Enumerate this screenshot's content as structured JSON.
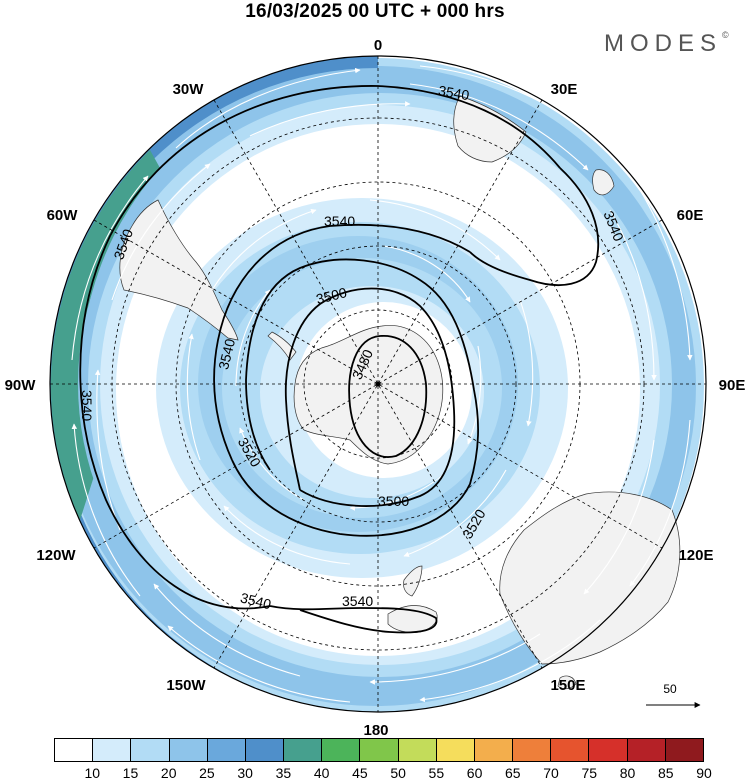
{
  "title": "16/03/2025  00 UTC  + 000 hrs",
  "brand": "MODES",
  "brand_mark": "©",
  "longitude_labels": {
    "lon_0": "0",
    "lon_30e": "30E",
    "lon_60e": "60E",
    "lon_90e": "90E",
    "lon_120e": "120E",
    "lon_150e": "150E",
    "lon_180": "180",
    "lon_150w": "150W",
    "lon_120w": "120W",
    "lon_90w": "90W",
    "lon_60w": "60W",
    "lon_30w": "30W"
  },
  "contour_labels": {
    "c1": "3540",
    "c2": "3540",
    "c3": "3540",
    "c4": "3540",
    "c5": "3540",
    "c6": "3500",
    "c7": "3480",
    "c8": "3520",
    "c9": "3500",
    "c10": "3520",
    "c11": "3540",
    "c12": "3540"
  },
  "wind_scale_label": "50",
  "colorbar": {
    "labels": [
      "10",
      "15",
      "20",
      "25",
      "30",
      "35",
      "40",
      "45",
      "50",
      "55",
      "60",
      "65",
      "70",
      "75",
      "80",
      "85",
      "90"
    ],
    "colors": [
      "#ffffff",
      "#d4ecfb",
      "#b2dcf5",
      "#8ec4ea",
      "#6aa8dc",
      "#4f8fca",
      "#46a08e",
      "#4cb45a",
      "#80c64a",
      "#c3dc5a",
      "#f5dd5c",
      "#f3ae4c",
      "#ee7f3a",
      "#e6542e",
      "#d6302a",
      "#b52127",
      "#8f1a1e"
    ]
  }
}
